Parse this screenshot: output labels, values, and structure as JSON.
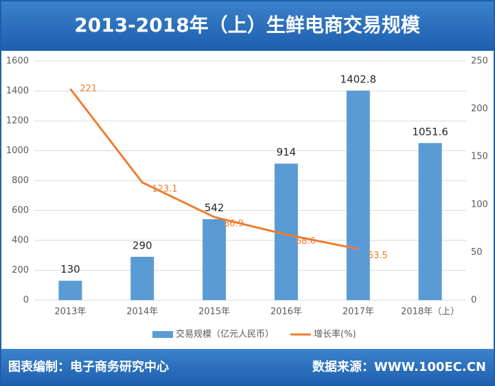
{
  "chart_data": {
    "type": "bar+line",
    "title": "2013-2018年（上）生鲜电商交易规模",
    "categories": [
      "2013年",
      "2014年",
      "2015年",
      "2016年",
      "2017年",
      "2018年（上）"
    ],
    "series": [
      {
        "name": "交易规模（亿元人民币）",
        "color": "#5b9bd5",
        "type": "bar",
        "values": [
          130,
          290,
          542,
          914,
          1402.8,
          1051.6
        ]
      },
      {
        "name": "增长率(%)",
        "color": "#ed7d31",
        "type": "line",
        "axis": "y2",
        "values": [
          221,
          123.1,
          86.9,
          68.6,
          53.5,
          null
        ]
      }
    ],
    "ylim": [
      0,
      1600
    ],
    "yticks": [
      0,
      200,
      400,
      600,
      800,
      1000,
      1200,
      1400,
      1600
    ],
    "y2lim": [
      0,
      250
    ],
    "y2ticks": [
      0,
      50,
      100,
      150,
      200,
      250
    ],
    "grid": true,
    "legend": "bottom"
  },
  "footer": {
    "left": "图表编制：电子商务研究中心",
    "right": "数据来源：WWW.100EC.CN"
  }
}
